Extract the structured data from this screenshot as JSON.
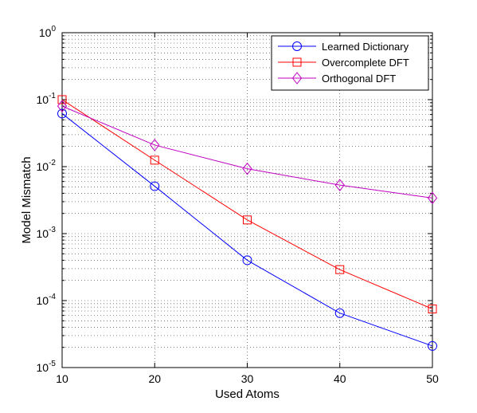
{
  "chart_data": {
    "type": "line",
    "title": "",
    "xlabel": "Used Atoms",
    "ylabel": "Model Mismatch",
    "xlim": [
      10,
      50
    ],
    "ylim": [
      1e-05,
      1
    ],
    "yscale": "log",
    "grid": true,
    "legend_position": "top-right",
    "x": [
      10,
      20,
      30,
      40,
      50
    ],
    "x_ticks": [
      "10",
      "20",
      "30",
      "40",
      "50"
    ],
    "y_ticks": [
      {
        "base": "10",
        "exp": "0",
        "value": 1
      },
      {
        "base": "10",
        "exp": "-1",
        "value": 0.1
      },
      {
        "base": "10",
        "exp": "-2",
        "value": 0.01
      },
      {
        "base": "10",
        "exp": "-3",
        "value": 0.001
      },
      {
        "base": "10",
        "exp": "-4",
        "value": 0.0001
      },
      {
        "base": "10",
        "exp": "-5",
        "value": 1e-05
      }
    ],
    "series": [
      {
        "name": "Learned Dictionary",
        "color": "#0000ff",
        "marker": "circle",
        "values": [
          0.062,
          0.0051,
          0.0004,
          6.5e-05,
          2.1e-05
        ]
      },
      {
        "name": "Overcomplete DFT",
        "color": "#ff0000",
        "marker": "square",
        "values": [
          0.1,
          0.0125,
          0.0016,
          0.00029,
          7.5e-05
        ]
      },
      {
        "name": "Orthogonal DFT",
        "color": "#bf00bf",
        "marker": "diamond",
        "values": [
          0.08,
          0.021,
          0.0093,
          0.0053,
          0.0034
        ]
      }
    ]
  }
}
